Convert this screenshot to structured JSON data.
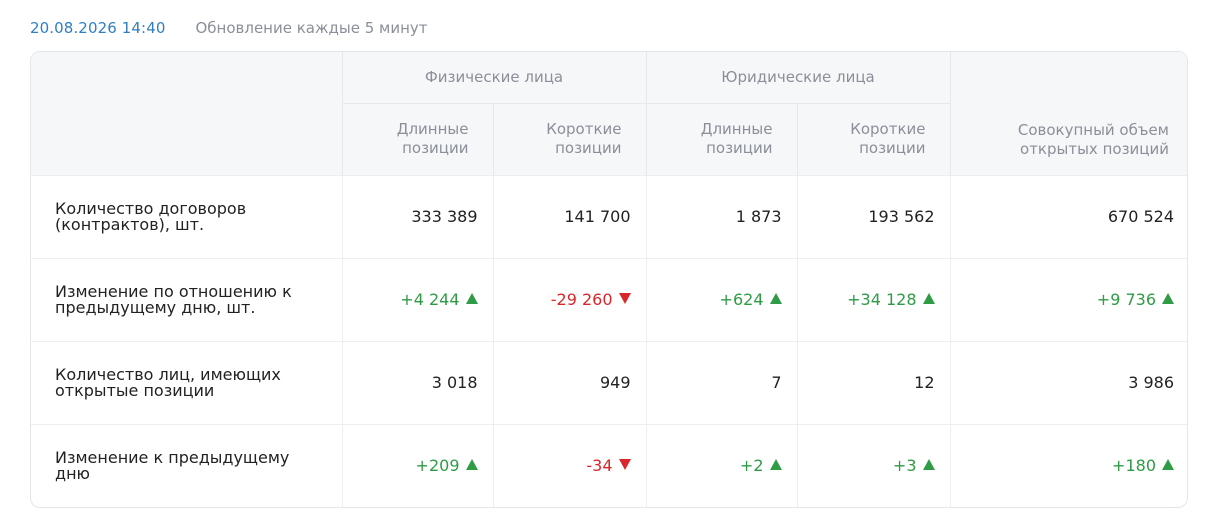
{
  "header": {
    "timestamp": "20.08.2026 14:40",
    "update_note": "Обновление каждые 5 минут"
  },
  "table": {
    "groups": {
      "individuals": "Физические лица",
      "legal": "Юридические лица"
    },
    "columns": {
      "long": "Длинные позиции",
      "short": "Короткие позиции",
      "total": "Совокупный объем открытых позиций"
    },
    "rows": [
      {
        "label": "Количество договоров (контрактов), шт.",
        "cells": [
          {
            "text": "333 389",
            "trend": "none"
          },
          {
            "text": "141 700",
            "trend": "none"
          },
          {
            "text": "1 873",
            "trend": "none"
          },
          {
            "text": "193 562",
            "trend": "none"
          },
          {
            "text": "670 524",
            "trend": "none"
          }
        ]
      },
      {
        "label": "Изменение по отношению к предыдущему дню, шт.",
        "cells": [
          {
            "text": "+4 244",
            "trend": "up"
          },
          {
            "text": "-29 260",
            "trend": "down"
          },
          {
            "text": "+624",
            "trend": "up"
          },
          {
            "text": "+34 128",
            "trend": "up"
          },
          {
            "text": "+9 736",
            "trend": "up"
          }
        ]
      },
      {
        "label": "Количество лиц, имеющих открытые позиции",
        "cells": [
          {
            "text": "3 018",
            "trend": "none"
          },
          {
            "text": "949",
            "trend": "none"
          },
          {
            "text": "7",
            "trend": "none"
          },
          {
            "text": "12",
            "trend": "none"
          },
          {
            "text": "3 986",
            "trend": "none"
          }
        ]
      },
      {
        "label": "Изменение к предыдущему дню",
        "cells": [
          {
            "text": "+209",
            "trend": "up"
          },
          {
            "text": "-34",
            "trend": "down"
          },
          {
            "text": "+2",
            "trend": "up"
          },
          {
            "text": "+3",
            "trend": "up"
          },
          {
            "text": "+180",
            "trend": "up"
          }
        ]
      }
    ]
  },
  "colors": {
    "timestamp": "#2f7fc1",
    "muted": "#8a8f99",
    "positive": "#2e9b45",
    "negative": "#d9262a"
  }
}
